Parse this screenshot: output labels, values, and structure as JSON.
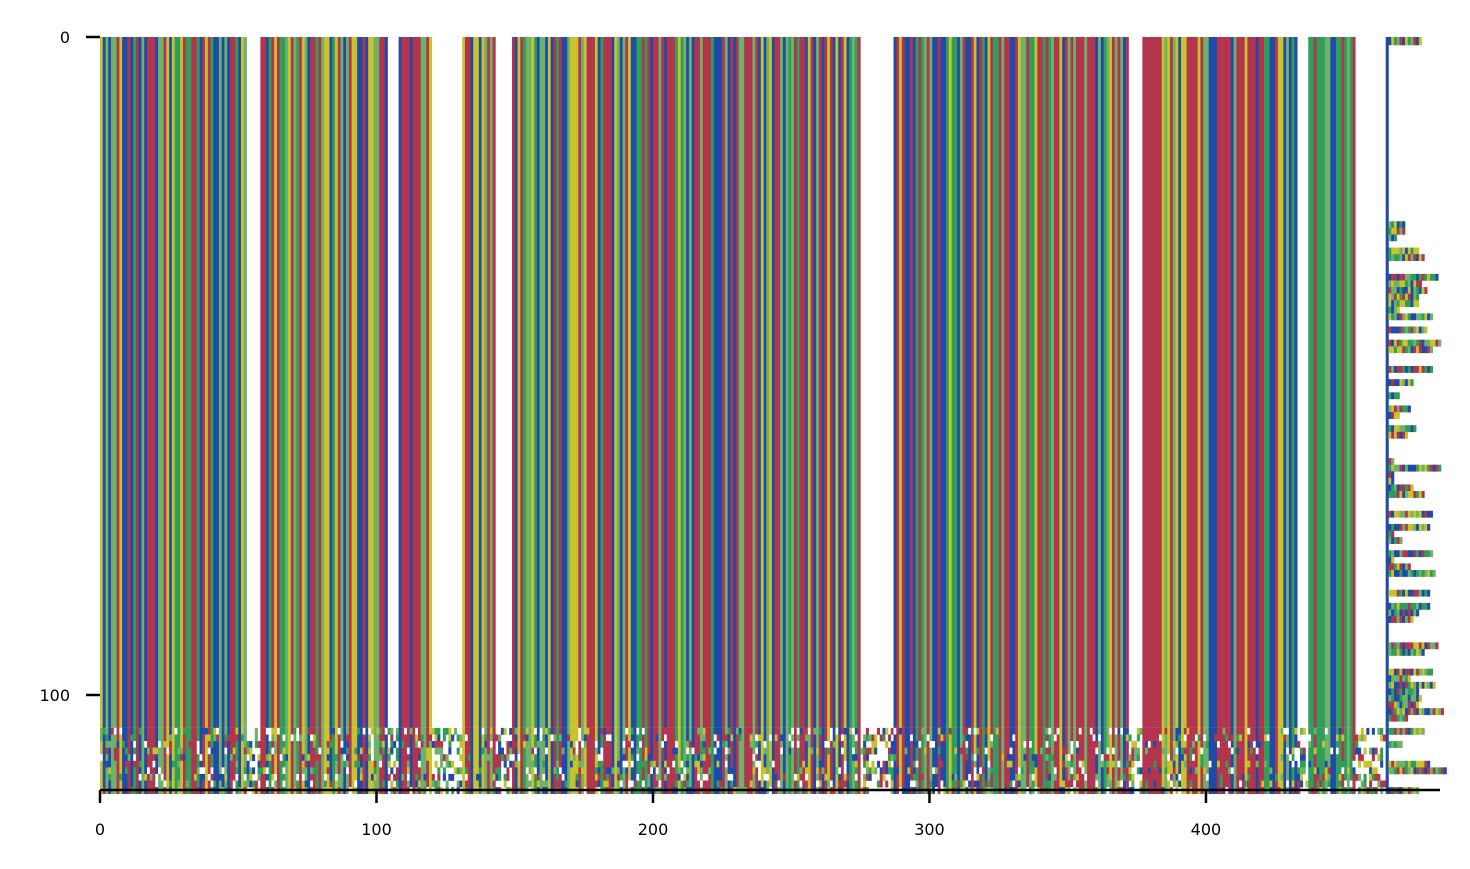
{
  "chart_data": {
    "type": "heatmap",
    "title": "",
    "xlabel": "",
    "ylabel": "",
    "xlim": [
      0,
      485
    ],
    "ylim": [
      0,
      115
    ],
    "y_inverted": true,
    "x_ticks": [
      0,
      100,
      200,
      300,
      400
    ],
    "y_ticks": [
      0,
      100
    ],
    "x_tick_labels": [
      "0",
      "100",
      "200",
      "300",
      "400"
    ],
    "y_tick_labels": [
      "0",
      "100"
    ],
    "grid": false,
    "legend": "none",
    "palette": {
      "A": "#2f9e5a",
      "C": "#1f4aa8",
      "G": "#c9c32b",
      "T": "#b3354d",
      "alt": "#6db26a",
      "gap": "#ffffff"
    },
    "sequence_count": 115,
    "alignment_length": 485,
    "gap_columns": [
      [
        53,
        57
      ],
      [
        104,
        107
      ],
      [
        120,
        130
      ],
      [
        143,
        148
      ],
      [
        275,
        286
      ],
      [
        372,
        376
      ],
      [
        433,
        436
      ],
      [
        454,
        464
      ]
    ],
    "dense_gap_region_rows": [
      105,
      115
    ]
  }
}
